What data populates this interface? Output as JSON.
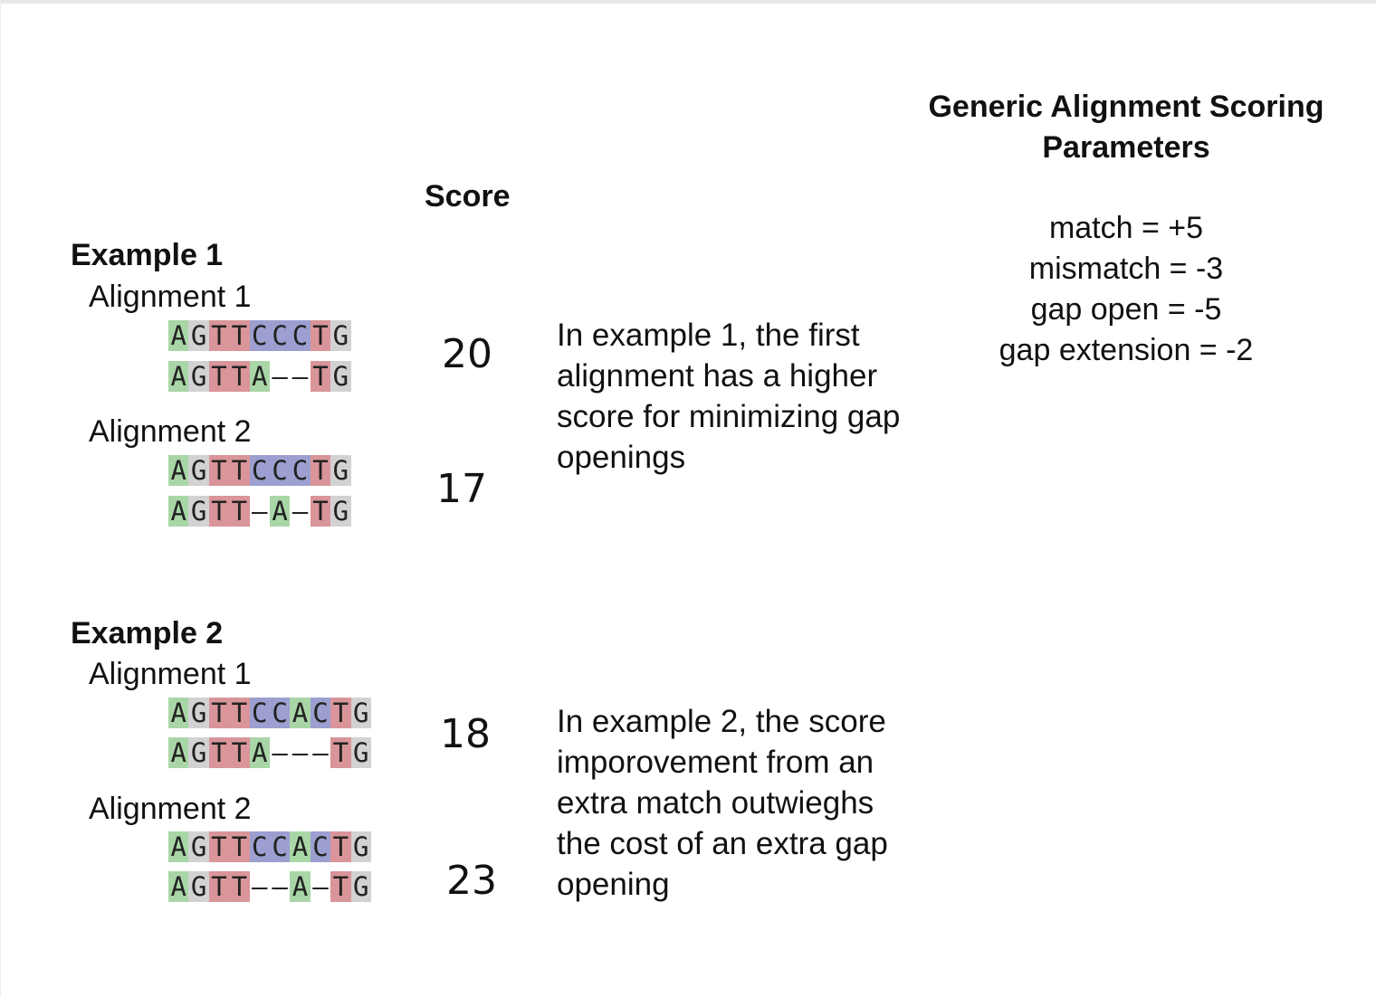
{
  "params": {
    "title_line1": "Generic Alignment Scoring",
    "title_line2": "Parameters",
    "items": [
      "match = +5",
      "mismatch = -3",
      "gap open = -5",
      "gap extension = -2"
    ]
  },
  "score_header": "Score",
  "examples": [
    {
      "title": "Example 1",
      "description": "In example 1, the first alignment has a higher score for minimizing gap openings",
      "alignments": [
        {
          "label": "Alignment 1",
          "top": "AGTTCCCTG",
          "bottom": "AGTTA--TG",
          "score": "20"
        },
        {
          "label": "Alignment 2",
          "top": "AGTTCCCTG",
          "bottom": "AGTT-A-TG",
          "score": "17"
        }
      ]
    },
    {
      "title": "Example 2",
      "description": "In example 2, the score imporovement from an extra match outwieghs the cost of an extra gap opening",
      "alignments": [
        {
          "label": "Alignment 1",
          "top": "AGTTCCACTG",
          "bottom": "AGTTA---TG",
          "score": "18"
        },
        {
          "label": "Alignment 2",
          "top": "AGTTCCACTG",
          "bottom": "AGTT--A-TG",
          "score": "23"
        }
      ]
    }
  ],
  "colors": {
    "A": "#a9d6a6",
    "T": "#d9959a",
    "C": "#9c9fd0",
    "G": "#d2d2d2"
  }
}
